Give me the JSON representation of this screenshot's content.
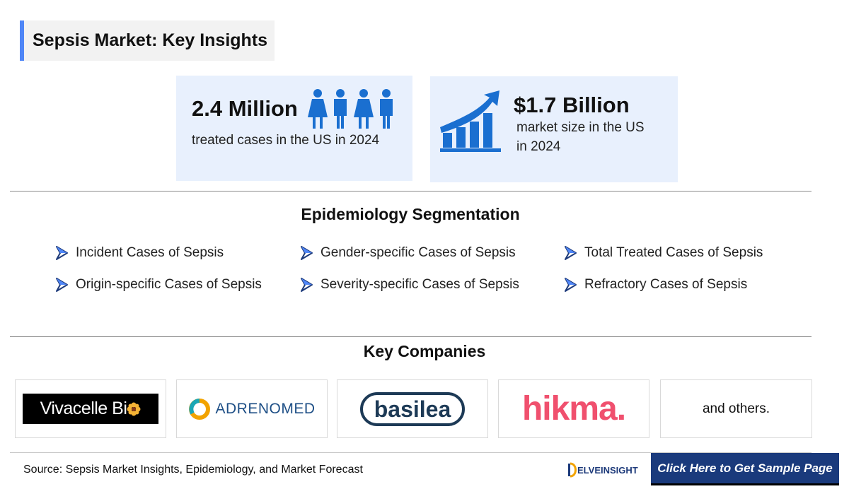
{
  "header": {
    "title": "Sepsis Market: Key Insights"
  },
  "stats": {
    "cases_value": "2.4 Million",
    "cases_desc": "treated cases in the US in 2024",
    "market_value": "$1.7 Billion",
    "market_desc_line1": "market size in the US",
    "market_desc_line2": "in 2024"
  },
  "epidemiology": {
    "title": "Epidemiology Segmentation",
    "items": [
      "Incident Cases of Sepsis",
      "Gender-specific Cases of Sepsis",
      "Total Treated Cases of Sepsis",
      "Origin-specific Cases of Sepsis",
      "Severity-specific Cases of Sepsis",
      "Refractory Cases of Sepsis"
    ]
  },
  "companies": {
    "title": "Key Companies",
    "vivacelle": "Vivacelle Bi",
    "adrenomed": "ADRENOMED",
    "basilea": "basilea",
    "hikma": "hikma.",
    "others": "and others."
  },
  "footer": {
    "source": "Source: Sepsis Market Insights, Epidemiology, and Market Forecast",
    "logo_text": "ELVEINSIGHT",
    "cta": "Click Here to Get Sample Page"
  },
  "colors": {
    "accent": "#4f86f7",
    "card_bg": "#e8f0fd",
    "icon_blue": "#1a6fd0",
    "cta_bg": "#1a3a7c",
    "hikma": "#f0506e"
  }
}
